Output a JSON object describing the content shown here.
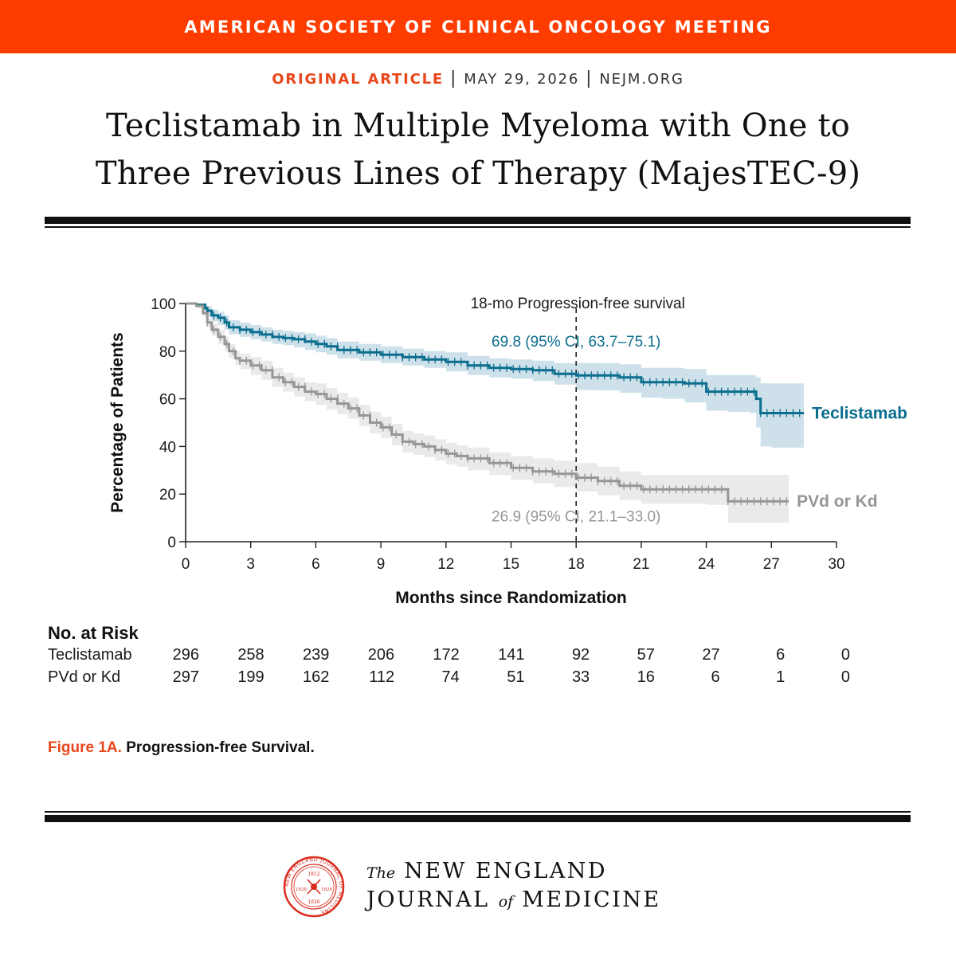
{
  "banner": {
    "text": "AMERICAN SOCIETY OF CLINICAL ONCOLOGY MEETING"
  },
  "article": {
    "type": "ORIGINAL ARTICLE",
    "date": "MAY 29, 2026",
    "site": "NEJM.ORG",
    "title_line1": "Teclistamab in Multiple Myeloma with One to",
    "title_line2": "Three Previous Lines of Therapy (MajesTEC-9)"
  },
  "chart_data": {
    "type": "line",
    "title": "",
    "xlabel": "Months since Randomization",
    "ylabel": "Percentage of Patients",
    "xlim": [
      0,
      30
    ],
    "ylim": [
      0,
      100
    ],
    "xticks": [
      0,
      3,
      6,
      9,
      12,
      15,
      18,
      21,
      24,
      27,
      30
    ],
    "yticks": [
      0,
      20,
      40,
      60,
      80,
      100
    ],
    "grid": false,
    "legend": "inline labels at right end of curves",
    "reference_line": {
      "x": 18,
      "label": "18-mo Progression-free survival"
    },
    "annotations": [
      {
        "series": "Teclistamab",
        "text": "69.8 (95% CI, 63.7–75.1)"
      },
      {
        "series": "PVd or Kd",
        "text": "26.9 (95% CI, 21.1–33.0)"
      }
    ],
    "series": [
      {
        "name": "Teclistamab",
        "color": "#0a6e8f",
        "band_color": "#c5dce6",
        "x": [
          0,
          0.5,
          0.9,
          1.0,
          1.2,
          1.5,
          1.8,
          2.0,
          2.5,
          3.0,
          3.5,
          4.0,
          4.5,
          5.0,
          5.5,
          6.0,
          6.5,
          7.0,
          8.0,
          9.0,
          10.0,
          11.0,
          12.0,
          13.0,
          14.0,
          15.0,
          16.0,
          17.0,
          18.0,
          19.0,
          20.0,
          21.0,
          22.0,
          23.0,
          24.0,
          25.0,
          26.0,
          26.3,
          26.5,
          27.0,
          28.0,
          28.5
        ],
        "y": [
          100,
          99.5,
          98,
          97,
          95,
          94,
          92,
          90,
          89,
          88,
          87,
          86,
          85.5,
          85,
          84,
          83,
          82,
          80.5,
          79.5,
          78.5,
          77.5,
          76.5,
          75.5,
          74,
          73,
          72.5,
          72,
          70.5,
          69.8,
          69.8,
          69,
          67,
          67,
          66.5,
          63,
          63,
          63,
          60,
          54,
          54,
          54,
          54
        ],
        "lower": [
          100,
          98.5,
          96,
          94.5,
          92.5,
          91,
          89,
          87,
          86,
          85,
          84,
          83,
          82.5,
          81.5,
          80.5,
          79.5,
          78.5,
          77,
          76,
          75,
          74,
          73,
          71.5,
          70,
          69,
          68.5,
          67.5,
          66,
          63.7,
          63.5,
          62.5,
          60.5,
          60,
          58.5,
          55,
          54.5,
          54,
          48,
          40,
          39.5,
          39.5,
          39.5
        ],
        "upper": [
          100,
          100,
          99.5,
          99,
          97.5,
          96.5,
          95,
          93,
          92,
          91,
          90,
          89,
          88.5,
          88,
          87.5,
          86.5,
          85.5,
          84,
          83,
          82,
          81,
          80,
          79.5,
          78,
          77,
          76.5,
          76,
          75,
          75.1,
          75,
          74.5,
          73,
          73,
          72.5,
          70,
          70,
          70,
          69,
          66.5,
          66.5,
          66.5,
          66.5
        ],
        "end_x": 28.5
      },
      {
        "name": "PVd or Kd",
        "color": "#969696",
        "band_color": "#e6e6e6",
        "x": [
          0,
          0.5,
          0.8,
          1.0,
          1.2,
          1.5,
          1.8,
          2.0,
          2.3,
          2.5,
          3.0,
          3.5,
          4.0,
          4.5,
          5.0,
          5.5,
          6.0,
          6.5,
          7.0,
          7.5,
          8.0,
          8.5,
          9.0,
          9.5,
          10.0,
          10.5,
          11.0,
          11.5,
          12.0,
          12.5,
          13.0,
          14.0,
          15.0,
          16.0,
          17.0,
          18.0,
          19.0,
          20.0,
          21.0,
          22.0,
          23.0,
          24.0,
          25.0,
          26.0,
          27.0,
          27.8
        ],
        "y": [
          100,
          99,
          96,
          92,
          89,
          86,
          83,
          80,
          77,
          76,
          74,
          72,
          69,
          67,
          65,
          63,
          62,
          60,
          58,
          56,
          53,
          50,
          48,
          45,
          42,
          41,
          40,
          38.5,
          37,
          36,
          35,
          33,
          31,
          29.5,
          28.5,
          26.9,
          25.5,
          23.5,
          22,
          22,
          22,
          22,
          17,
          17,
          17,
          17
        ],
        "lower": [
          100,
          98,
          94.5,
          90,
          86.5,
          83,
          80,
          77,
          74,
          72.5,
          70,
          68,
          65,
          63,
          61,
          59,
          57.5,
          55.5,
          53.5,
          51.5,
          48.5,
          45.5,
          43.5,
          40.5,
          37.5,
          36.5,
          35.5,
          34,
          32.5,
          31.5,
          30,
          28,
          26,
          24.5,
          23,
          21.1,
          19.5,
          17.5,
          16,
          16,
          16,
          15.5,
          8,
          8,
          8,
          8
        ],
        "upper": [
          100,
          100,
          97.5,
          94,
          91.5,
          89,
          86,
          83,
          80,
          79,
          77.5,
          76,
          73,
          71,
          69,
          67,
          66.5,
          64.5,
          62.5,
          60.5,
          57.5,
          54.5,
          52.5,
          49.5,
          46.5,
          45.5,
          44.5,
          43,
          41.5,
          40.5,
          39.5,
          37.5,
          36,
          35,
          34,
          33.0,
          31.5,
          29.5,
          28,
          28,
          28,
          28,
          28,
          28,
          28,
          28
        ],
        "end_x": 27.8
      }
    ]
  },
  "risk_table": {
    "title": "No. at Risk",
    "rows": [
      {
        "label": "Teclistamab",
        "values": [
          "296",
          "258",
          "239",
          "206",
          "172",
          "141",
          "92",
          "57",
          "27",
          "6",
          "0"
        ]
      },
      {
        "label": "PVd or Kd",
        "values": [
          "297",
          "199",
          "162",
          "112",
          "74",
          "51",
          "33",
          "16",
          "6",
          "1",
          "0"
        ]
      }
    ]
  },
  "caption": {
    "label": "Figure 1A.",
    "text": "Progression-free Survival."
  },
  "journal": {
    "the": "The",
    "line1": "NEW ENGLAND",
    "line2a": "JOURNAL",
    "of": "of",
    "line2b": "MEDICINE",
    "seal_years": [
      "1812",
      "1828",
      "1826"
    ],
    "seal_ring_text": "NEW ENGLAND JOURNAL OF MEDICINE"
  }
}
